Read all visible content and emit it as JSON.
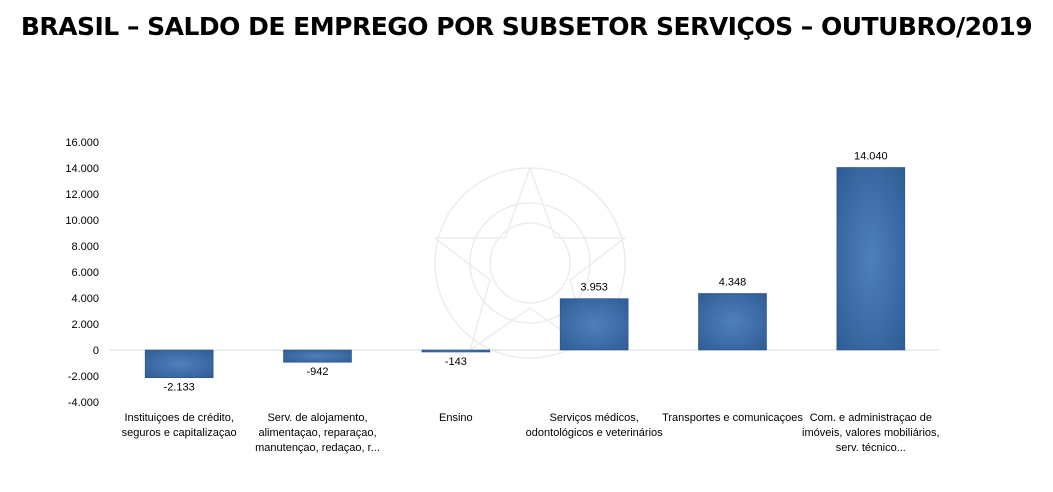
{
  "title": "BRASIL – SALDO DE EMPREGO POR SUBSETOR SERVIÇOS – OUTUBRO/2019",
  "chart_data": {
    "type": "bar",
    "title": "BRASIL – SALDO DE EMPREGO POR SUBSETOR SERVIÇOS – OUTUBRO/2019",
    "xlabel": "",
    "ylabel": "",
    "ylim": [
      -4000,
      16000
    ],
    "yticks": [
      16000,
      14000,
      12000,
      10000,
      8000,
      6000,
      4000,
      2000,
      0,
      -2000,
      -4000
    ],
    "ytick_labels": [
      "16.000",
      "14.000",
      "12.000",
      "10.000",
      "8.000",
      "6.000",
      "4.000",
      "2.000",
      "0",
      "-2.000",
      "-4.000"
    ],
    "grid": false,
    "legend": "none",
    "categories": [
      [
        "Instituiçoes de crédito,",
        "seguros e capitalizaçao"
      ],
      [
        "Serv. de alojamento,",
        "alimentaçao, reparaçao,",
        "manutençao, redaçao, r..."
      ],
      [
        "Ensino"
      ],
      [
        "Serviços médicos,",
        "odontológicos e veterinários"
      ],
      [
        "Transportes e comunicaçoes"
      ],
      [
        "Com. e administraçao de",
        "imóveis, valores mobiliários,",
        "serv. técnico..."
      ]
    ],
    "values": [
      -2133,
      -942,
      -143,
      3953,
      4348,
      14040
    ],
    "data_labels": [
      "-2.133",
      "-942",
      "-143",
      "3.953",
      "4.348",
      "14.040"
    ],
    "colors": {
      "bar": "#3a6aa5",
      "bar_light": "#4f80bd",
      "bar_dark": "#2a5287",
      "zero_line": "#d6dce6"
    }
  }
}
